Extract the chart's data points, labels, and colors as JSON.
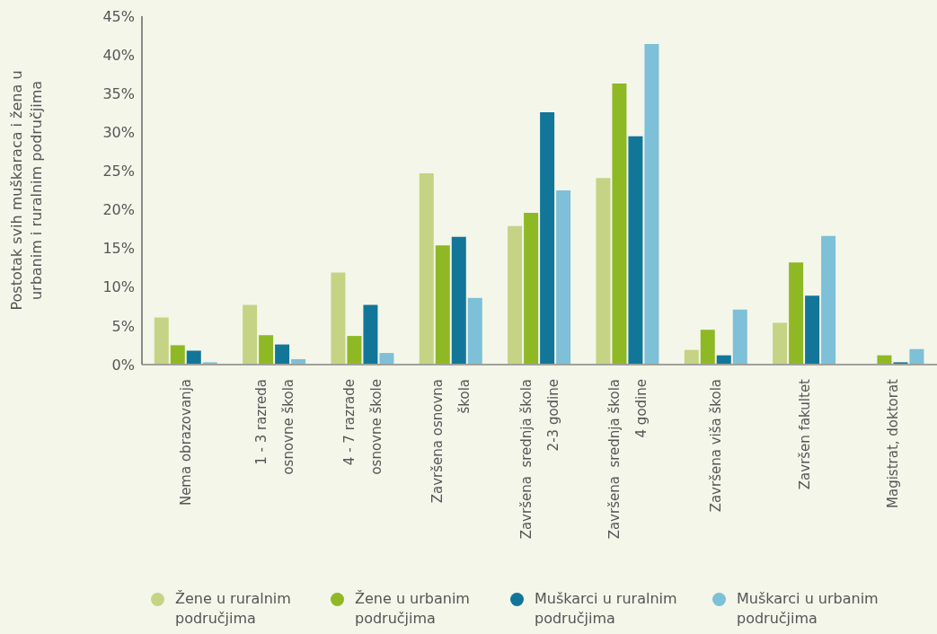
{
  "chart_data": {
    "type": "bar",
    "ylabel": "Postotak svih muškaraca i žena u\nurbanim i ruralnim područjima",
    "categories": [
      "Nema obrazovanja",
      "1 - 3 razreda\nosnovne škola",
      "4 - 7 razrade\nosnovne škole",
      "Završena osnovna\nškola",
      "Završena  srednja škola\n2-3 godine",
      "Završena  srednja škola\n4 godine",
      "Završena viša škola",
      "Završen fakultet",
      "Magistrat, doktorat"
    ],
    "series": [
      {
        "name": "Žene u ruralnim područjima",
        "color": "#c4d484",
        "values": [
          6.1,
          7.7,
          11.9,
          24.7,
          17.9,
          24.1,
          1.9,
          5.4,
          0
        ]
      },
      {
        "name": "Žene u urbanim područjima",
        "color": "#8fb825",
        "values": [
          2.5,
          3.8,
          3.7,
          15.4,
          19.6,
          36.3,
          4.5,
          13.2,
          1.2
        ]
      },
      {
        "name": "Muškarci u ruralnim područjima",
        "color": "#127699",
        "values": [
          1.8,
          2.6,
          7.7,
          16.5,
          32.6,
          29.5,
          1.2,
          8.9,
          0.3
        ]
      },
      {
        "name": "Muškarci u urbanim područjima",
        "color": "#7dc0d7",
        "values": [
          0.3,
          0.7,
          1.5,
          8.6,
          22.5,
          41.4,
          7.1,
          16.6,
          2.0
        ]
      }
    ],
    "ylim": [
      0,
      45
    ],
    "yticks": [
      {
        "value": 0,
        "label": "0%"
      },
      {
        "value": 5,
        "label": "5%"
      },
      {
        "value": 10,
        "label": "10%"
      },
      {
        "value": 15,
        "label": "15%"
      },
      {
        "value": 20,
        "label": "20%"
      },
      {
        "value": 25,
        "label": "25%"
      },
      {
        "value": 30,
        "label": "30%"
      },
      {
        "value": 35,
        "label": "35%"
      },
      {
        "value": 40,
        "label": "40%"
      },
      {
        "value": 45,
        "label": "45%"
      }
    ],
    "grid": false,
    "legend": "bottom"
  }
}
